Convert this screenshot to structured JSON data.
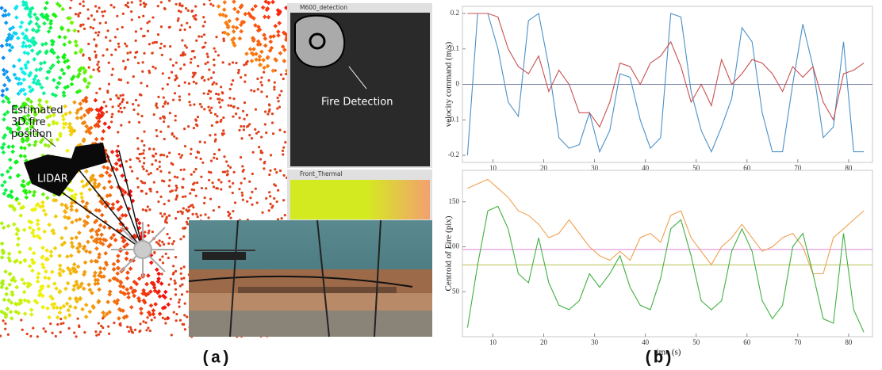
{
  "panel_a": {
    "annotations": {
      "fire_position": "Estimated 3D fire position",
      "lidar": "LIDAR",
      "fire_detection": "Fire Detection"
    },
    "windows": {
      "detection": "M600_detection",
      "thermal": "Front_Thermal"
    },
    "caption": "(a)"
  },
  "caption_b": "(b)",
  "chart_data": [
    {
      "type": "line",
      "ylabel": "velocity command (m/s)",
      "x": [
        5,
        7,
        9,
        11,
        13,
        15,
        17,
        19,
        21,
        23,
        25,
        27,
        29,
        31,
        33,
        35,
        37,
        39,
        41,
        43,
        45,
        47,
        49,
        51,
        53,
        55,
        57,
        59,
        61,
        63,
        65,
        67,
        69,
        71,
        73,
        75,
        77,
        79,
        81,
        83
      ],
      "series": [
        {
          "color": "#4a90c8",
          "values": [
            -0.2,
            0.2,
            0.2,
            0.1,
            -0.05,
            -0.09,
            0.18,
            0.2,
            0.05,
            -0.15,
            -0.18,
            -0.17,
            -0.08,
            -0.19,
            -0.13,
            0.03,
            0.02,
            -0.1,
            -0.18,
            -0.15,
            0.2,
            0.19,
            -0.02,
            -0.13,
            -0.19,
            -0.12,
            -0.04,
            0.16,
            0.12,
            -0.08,
            -0.19,
            -0.19,
            0.0,
            0.17,
            0.05,
            -0.15,
            -0.12,
            0.12,
            -0.19,
            -0.19
          ]
        },
        {
          "color": "#c85050",
          "values": [
            0.2,
            0.2,
            0.2,
            0.19,
            0.1,
            0.05,
            0.03,
            0.08,
            -0.02,
            0.04,
            0.0,
            -0.08,
            -0.08,
            -0.12,
            -0.05,
            0.06,
            0.05,
            0.0,
            0.06,
            0.08,
            0.12,
            0.05,
            -0.05,
            0.0,
            -0.06,
            0.07,
            0.0,
            0.03,
            0.07,
            0.06,
            0.03,
            -0.02,
            0.05,
            0.02,
            0.05,
            -0.05,
            -0.1,
            0.03,
            0.04,
            0.06
          ]
        }
      ],
      "hlines": [
        {
          "value": 0,
          "color": "#8088a8"
        }
      ],
      "xlim": [
        4,
        84.7
      ],
      "xticks": [
        10,
        20,
        30,
        40,
        50,
        60,
        70,
        80
      ],
      "ylim": [
        -0.22,
        0.22
      ],
      "yticks": [
        0.2,
        0.1,
        0,
        -0.1,
        -0.2
      ]
    },
    {
      "type": "line",
      "ylabel": "Centroid of Fire (pix)",
      "xlabel": "time (s)",
      "x": [
        5,
        7,
        9,
        11,
        13,
        15,
        17,
        19,
        21,
        23,
        25,
        27,
        29,
        31,
        33,
        35,
        37,
        39,
        41,
        43,
        45,
        47,
        49,
        51,
        53,
        55,
        57,
        59,
        61,
        63,
        65,
        67,
        69,
        71,
        73,
        75,
        77,
        79,
        81,
        83
      ],
      "series": [
        {
          "color": "#f0a050",
          "values": [
            165,
            170,
            175,
            165,
            155,
            140,
            135,
            125,
            110,
            115,
            130,
            115,
            100,
            90,
            85,
            95,
            85,
            110,
            115,
            105,
            135,
            140,
            110,
            95,
            80,
            100,
            110,
            125,
            110,
            95,
            100,
            110,
            115,
            100,
            70,
            70,
            110,
            120,
            130,
            140
          ]
        },
        {
          "color": "#40b040",
          "values": [
            10,
            80,
            140,
            145,
            120,
            70,
            60,
            110,
            60,
            35,
            30,
            40,
            70,
            55,
            70,
            90,
            55,
            35,
            30,
            65,
            120,
            130,
            90,
            40,
            30,
            40,
            95,
            120,
            95,
            40,
            20,
            35,
            100,
            115,
            70,
            20,
            15,
            115,
            30,
            5
          ]
        }
      ],
      "hlines": [
        {
          "value": 97,
          "color": "#e080e0"
        },
        {
          "value": 80,
          "color": "#b8c050"
        }
      ],
      "xlim": [
        4,
        84.7
      ],
      "xticks": [
        10,
        20,
        30,
        40,
        50,
        60,
        70,
        80
      ],
      "ylim": [
        0,
        185
      ],
      "yticks": [
        50,
        100,
        150
      ]
    }
  ]
}
